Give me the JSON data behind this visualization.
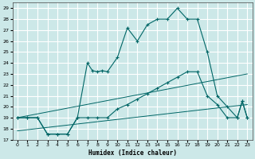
{
  "xlabel": "Humidex (Indice chaleur)",
  "bg_color": "#cce8e8",
  "grid_color": "#ffffff",
  "line_color": "#006666",
  "xlim": [
    -0.5,
    23.5
  ],
  "ylim": [
    17,
    29.5
  ],
  "yticks": [
    17,
    18,
    19,
    20,
    21,
    22,
    23,
    24,
    25,
    26,
    27,
    28,
    29
  ],
  "xticks": [
    0,
    1,
    2,
    3,
    4,
    5,
    6,
    7,
    8,
    9,
    10,
    11,
    12,
    13,
    14,
    15,
    16,
    17,
    18,
    19,
    20,
    21,
    22,
    23
  ],
  "main_line": [
    [
      0,
      19
    ],
    [
      1,
      19
    ],
    [
      2,
      19
    ],
    [
      3,
      17.5
    ],
    [
      4,
      17.5
    ],
    [
      5,
      17.5
    ],
    [
      6,
      19
    ],
    [
      7,
      24
    ],
    [
      7.5,
      23.3
    ],
    [
      8,
      23.2
    ],
    [
      8.5,
      23.3
    ],
    [
      9,
      23.2
    ],
    [
      10,
      24.5
    ],
    [
      11,
      27.2
    ],
    [
      12,
      26.0
    ],
    [
      13,
      27.5
    ],
    [
      14,
      28.0
    ],
    [
      15,
      28.0
    ],
    [
      16,
      29.0
    ],
    [
      17,
      28.0
    ],
    [
      18,
      28.0
    ],
    [
      19,
      25.0
    ],
    [
      20,
      21.0
    ],
    [
      21,
      20.0
    ],
    [
      22,
      19.0
    ],
    [
      22.5,
      20.5
    ],
    [
      23,
      19.0
    ]
  ],
  "line2": [
    [
      0,
      19
    ],
    [
      1,
      19
    ],
    [
      2,
      19
    ],
    [
      3,
      17.5
    ],
    [
      4,
      17.5
    ],
    [
      5,
      17.5
    ],
    [
      6,
      19
    ],
    [
      7,
      19
    ],
    [
      8,
      19
    ],
    [
      9,
      19
    ],
    [
      10,
      19.8
    ],
    [
      11,
      20.2
    ],
    [
      12,
      20.7
    ],
    [
      13,
      21.2
    ],
    [
      14,
      21.7
    ],
    [
      15,
      22.2
    ],
    [
      16,
      22.7
    ],
    [
      17,
      23.2
    ],
    [
      18,
      23.2
    ],
    [
      19,
      21.0
    ],
    [
      20,
      20.2
    ],
    [
      21,
      19.0
    ],
    [
      22,
      19.0
    ],
    [
      22.5,
      20.5
    ],
    [
      23,
      19.0
    ]
  ],
  "line3_x": [
    0,
    23
  ],
  "line3_y": [
    19.0,
    23.0
  ],
  "line4_x": [
    0,
    23
  ],
  "line4_y": [
    17.8,
    20.2
  ]
}
